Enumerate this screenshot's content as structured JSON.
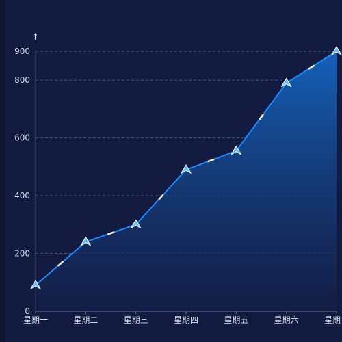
{
  "chart_data": {
    "type": "area",
    "categories": [
      "星期一",
      "星期二",
      "星期三",
      "星期四",
      "星期五",
      "星期六",
      "星期日"
    ],
    "values": [
      90,
      240,
      300,
      490,
      555,
      790,
      900
    ],
    "yticks": [
      0,
      200,
      400,
      600,
      800,
      900
    ],
    "ylim": [
      0,
      900
    ],
    "y_axis_symbol": "↑",
    "grid": true,
    "colors": {
      "line": "#1a8cff",
      "area_top": "#1565c0",
      "area_bottom": "#14204a",
      "grid": "#4a5585",
      "marker": "#5fb8ff"
    }
  }
}
